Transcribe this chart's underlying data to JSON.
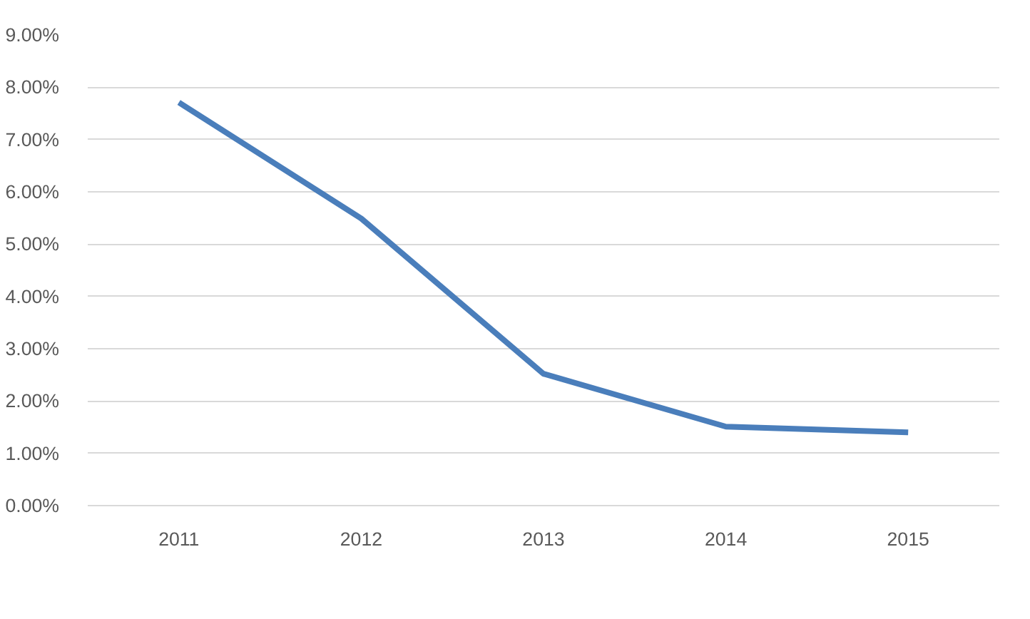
{
  "chart_data": {
    "type": "line",
    "categories": [
      "2011",
      "2012",
      "2013",
      "2014",
      "2015"
    ],
    "series": [
      {
        "color": "#4a7ebb",
        "values": [
          7.71,
          5.49,
          2.52,
          1.51,
          1.4
        ]
      }
    ],
    "ylim": [
      0,
      9
    ],
    "yticks": [
      {
        "value": 0,
        "label": "0.00%"
      },
      {
        "value": 1,
        "label": "1.00%"
      },
      {
        "value": 2,
        "label": "2.00%"
      },
      {
        "value": 3,
        "label": "3.00%"
      },
      {
        "value": 4,
        "label": "4.00%"
      },
      {
        "value": 5,
        "label": "5.00%"
      },
      {
        "value": 6,
        "label": "6.00%"
      },
      {
        "value": 7,
        "label": "7.00%"
      },
      {
        "value": 8,
        "label": "8.00%"
      },
      {
        "value": 9,
        "label": "9.00%"
      }
    ],
    "grid": "y",
    "marker": "none",
    "line_style": "solid"
  }
}
